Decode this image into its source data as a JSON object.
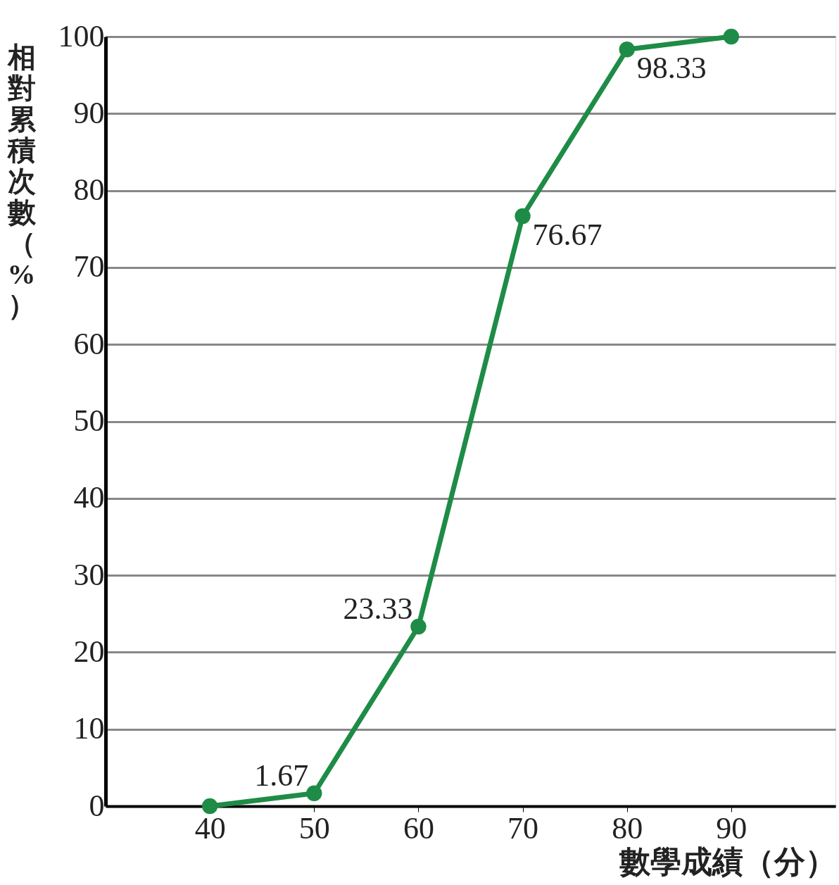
{
  "chart_data": {
    "type": "line",
    "xlabel": "數學成績（分）",
    "ylabel": "相對累積次數（%）",
    "x": [
      40,
      50,
      60,
      70,
      80,
      90
    ],
    "series": [
      {
        "color": "#1e8c46",
        "values": [
          0,
          1.67,
          23.33,
          76.67,
          98.33,
          100
        ],
        "value_labels": [
          null,
          "1.67",
          "23.33",
          "76.67",
          "98.33",
          null
        ]
      }
    ],
    "xlim": [
      30,
      100
    ],
    "xticks": [
      40,
      50,
      60,
      70,
      80,
      90
    ],
    "ylim": [
      0,
      100
    ],
    "yticks": [
      0,
      10,
      20,
      30,
      40,
      50,
      60,
      70,
      80,
      90,
      100
    ],
    "grid": "y",
    "marker": "circle",
    "line_style": "solid"
  }
}
